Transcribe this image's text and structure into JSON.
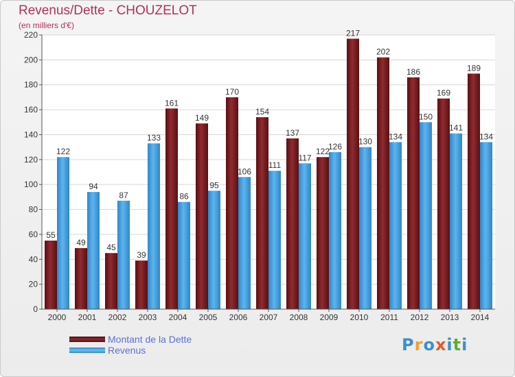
{
  "header": {
    "title": "Revenus/Dette - CHOUZELOT",
    "subtitle": "(en milliers d'€)"
  },
  "legend": {
    "items": [
      {
        "label": "Montant de la Dette",
        "color": "#7a1e22"
      },
      {
        "label": "Revenus",
        "color": "#4aa3e0"
      }
    ]
  },
  "logo": {
    "text": "Proxiti",
    "letter_colors": [
      "#3b8fd1",
      "#f0a030",
      "#3b8fd1",
      "#e05a2a",
      "#3b8fd1",
      "#58b030",
      "#3b8fd1"
    ]
  },
  "chart_data": {
    "type": "bar",
    "categories": [
      "2000",
      "2001",
      "2002",
      "2003",
      "2004",
      "2005",
      "2006",
      "2007",
      "2008",
      "2009",
      "2010",
      "2011",
      "2012",
      "2013",
      "2014"
    ],
    "series": [
      {
        "name": "Montant de la Dette",
        "color": "#7a1e22",
        "values": [
          55,
          49,
          45,
          39,
          161,
          149,
          170,
          154,
          137,
          122,
          217,
          202,
          186,
          169,
          189
        ]
      },
      {
        "name": "Revenus",
        "color": "#4aa3e0",
        "values": [
          122,
          94,
          87,
          133,
          86,
          95,
          106,
          111,
          117,
          126,
          130,
          134,
          150,
          141,
          134
        ]
      }
    ],
    "yticks": [
      "0",
      "20",
      "40",
      "60",
      "80",
      "100",
      "120",
      "140",
      "160",
      "180",
      "200",
      "220"
    ],
    "ylim": [
      0,
      220
    ],
    "grid": true,
    "legend_position": "bottom-left"
  }
}
